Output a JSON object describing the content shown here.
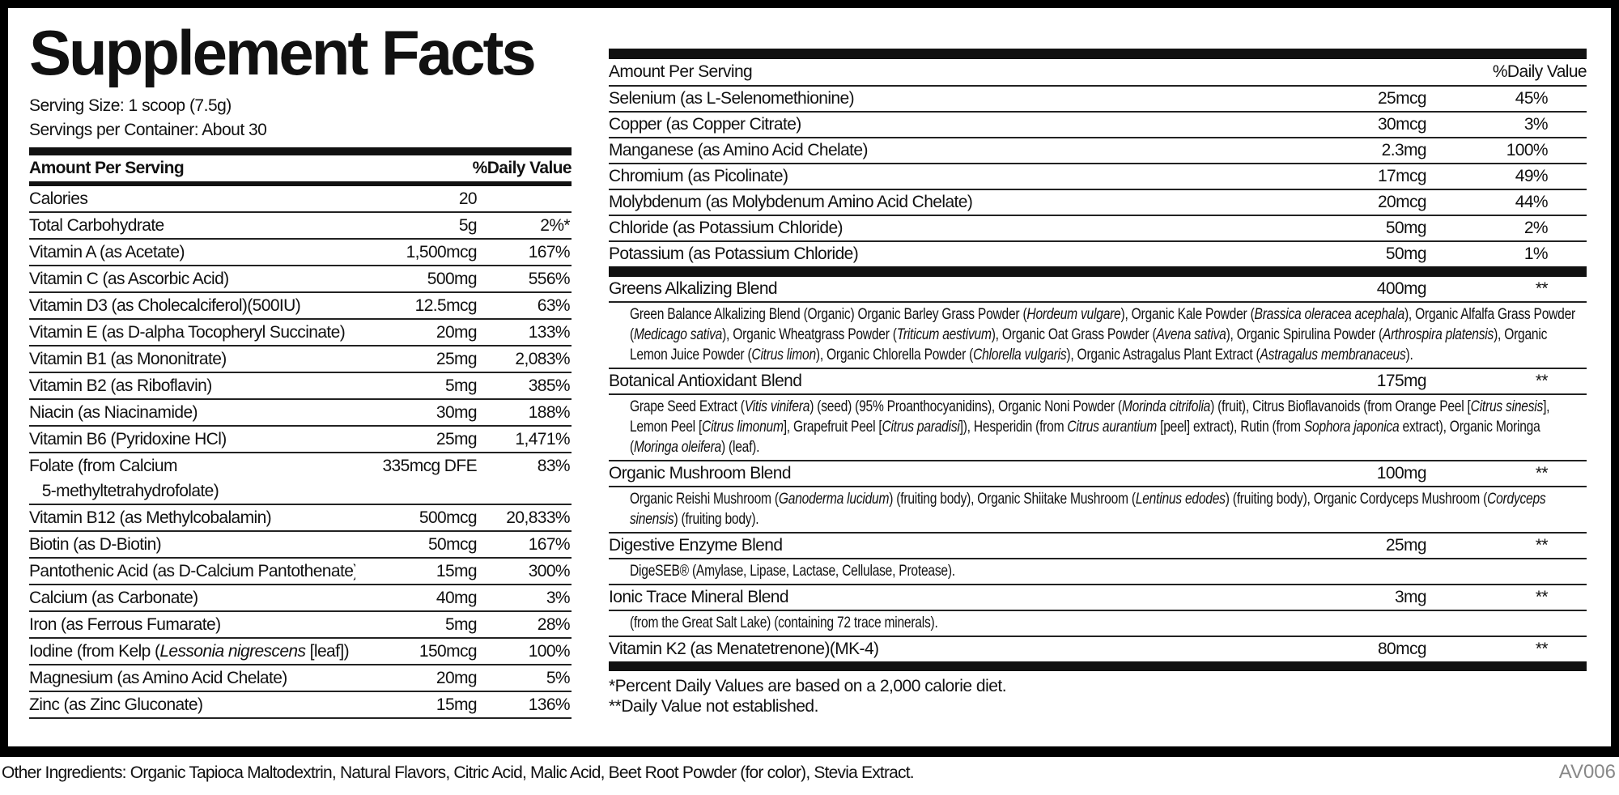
{
  "left": {
    "title": "Supplement Facts",
    "serving_size": "Serving Size: 1 scoop (7.5g)",
    "servings_per_container": "Servings per Container: About 30",
    "header": {
      "name": "Amount Per Serving",
      "dv": "%Daily Value"
    },
    "rows": [
      {
        "name": "Calories",
        "amount": "20",
        "dv": ""
      },
      {
        "name": "Total Carbohydrate",
        "amount": "5g",
        "dv": "2%*"
      },
      {
        "name": "Vitamin A (as Acetate)",
        "amount": "1,500mcg",
        "dv": "167%"
      },
      {
        "name": "Vitamin C (as Ascorbic Acid)",
        "amount": "500mg",
        "dv": "556%"
      },
      {
        "name": "Vitamin D3 (as Cholecalciferol)(500IU)",
        "amount": "12.5mcg",
        "dv": "63%"
      },
      {
        "name": "Vitamin E (as D-alpha Tocopheryl Succinate)",
        "amount": "20mg",
        "dv": "133%"
      },
      {
        "name": "Vitamin B1 (as Mononitrate)",
        "amount": "25mg",
        "dv": "2,083%"
      },
      {
        "name": "Vitamin B2 (as Riboflavin)",
        "amount": "5mg",
        "dv": "385%"
      },
      {
        "name": "Niacin (as Niacinamide)",
        "amount": "30mg",
        "dv": "188%"
      },
      {
        "name": "Vitamin B6 (Pyridoxine HCl)",
        "amount": "25mg",
        "dv": "1,471%"
      },
      {
        "name": "Folate (from Calcium\n   5-methyltetrahydrofolate)",
        "amount": "335mcg DFE",
        "dv": "83%"
      },
      {
        "name": "Vitamin B12 (as Methylcobalamin)",
        "amount": "500mcg",
        "dv": "20,833%"
      },
      {
        "name": "Biotin (as D-Biotin)",
        "amount": "50mcg",
        "dv": "167%"
      },
      {
        "name": "Pantothenic Acid (as D-Calcium Pantothenate)",
        "amount": "15mg",
        "dv": "300%"
      },
      {
        "name": "Calcium (as Carbonate)",
        "amount": "40mg",
        "dv": "3%"
      },
      {
        "name": "Iron (as Ferrous Fumarate)",
        "amount": "5mg",
        "dv": "28%"
      },
      {
        "name": [
          {
            "t": "Iodine (from Kelp ("
          },
          {
            "t": "Lessonia nigrescens",
            "i": true
          },
          {
            "t": " [leaf])"
          }
        ],
        "amount": "150mcg",
        "dv": "100%"
      },
      {
        "name": "Magnesium (as Amino Acid Chelate)",
        "amount": "20mg",
        "dv": "5%"
      },
      {
        "name": "Zinc (as Zinc Gluconate)",
        "amount": "15mg",
        "dv": "136%"
      }
    ]
  },
  "right": {
    "header": {
      "name": "Amount Per Serving",
      "dv": "%Daily Value"
    },
    "minerals": [
      {
        "name": "Selenium (as L-Selenomethionine)",
        "amount": "25mcg",
        "dv": "45%"
      },
      {
        "name": "Copper (as Copper Citrate)",
        "amount": "30mcg",
        "dv": "3%"
      },
      {
        "name": "Manganese (as Amino Acid Chelate)",
        "amount": "2.3mg",
        "dv": "100%"
      },
      {
        "name": "Chromium (as Picolinate)",
        "amount": "17mcg",
        "dv": "49%"
      },
      {
        "name": "Molybdenum (as Molybdenum Amino Acid Chelate)",
        "amount": "20mcg",
        "dv": "44%"
      },
      {
        "name": "Chloride (as Potassium Chloride)",
        "amount": "50mg",
        "dv": "2%"
      },
      {
        "name": "Potassium (as Potassium Chloride)",
        "amount": "50mg",
        "dv": "1%"
      }
    ],
    "blends": [
      {
        "name": "Greens Alkalizing Blend",
        "amount": "400mg",
        "dv": "**",
        "desc": [
          {
            "t": "Green Balance Alkalizing Blend (Organic) Organic Barley Grass Powder ("
          },
          {
            "t": "Hordeum vulgare",
            "i": true
          },
          {
            "t": "), Organic Kale Powder ("
          },
          {
            "t": "Brassica oleracea acephala",
            "i": true
          },
          {
            "t": "), Organic Alfalfa Grass Powder ("
          },
          {
            "t": "Medicago sativa",
            "i": true
          },
          {
            "t": "), Organic Wheatgrass Powder ("
          },
          {
            "t": "Triticum aestivum",
            "i": true
          },
          {
            "t": "), Organic Oat Grass Powder ("
          },
          {
            "t": "Avena sativa",
            "i": true
          },
          {
            "t": "), Organic Spirulina Powder ("
          },
          {
            "t": "Arthrospira platensis",
            "i": true
          },
          {
            "t": "), Organic Lemon Juice Powder ("
          },
          {
            "t": "Citrus limon",
            "i": true
          },
          {
            "t": "), Organic Chlorella Powder ("
          },
          {
            "t": "Chlorella vulgaris",
            "i": true
          },
          {
            "t": "), Organic Astragalus Plant Extract ("
          },
          {
            "t": "Astragalus membranaceus",
            "i": true
          },
          {
            "t": ")."
          }
        ]
      },
      {
        "name": "Botanical Antioxidant Blend",
        "amount": "175mg",
        "dv": "**",
        "desc": [
          {
            "t": "Grape Seed Extract ("
          },
          {
            "t": "Vitis vinifera",
            "i": true
          },
          {
            "t": ") (seed) (95% Proanthocyanidins), Organic Noni Powder ("
          },
          {
            "t": "Morinda citrifolia",
            "i": true
          },
          {
            "t": ") (fruit), Citrus Bioflavanoids (from Orange Peel ["
          },
          {
            "t": "Citrus sinesis",
            "i": true
          },
          {
            "t": "], Lemon Peel ["
          },
          {
            "t": "Citrus limonum",
            "i": true
          },
          {
            "t": "], Grapefruit Peel ["
          },
          {
            "t": "Citrus paradisi",
            "i": true
          },
          {
            "t": "]), Hesperidin (from "
          },
          {
            "t": "Citrus aurantium",
            "i": true
          },
          {
            "t": " [peel] extract), Rutin (from "
          },
          {
            "t": "Sophora japonica",
            "i": true
          },
          {
            "t": " extract), Organic Moringa ("
          },
          {
            "t": "Moringa oleifera",
            "i": true
          },
          {
            "t": ") (leaf)."
          }
        ]
      },
      {
        "name": "Organic Mushroom Blend",
        "amount": "100mg",
        "dv": "**",
        "desc": [
          {
            "t": "Organic Reishi Mushroom ("
          },
          {
            "t": "Ganoderma lucidum",
            "i": true
          },
          {
            "t": ") (fruiting body), Organic Shiitake Mushroom ("
          },
          {
            "t": "Lentinus edodes",
            "i": true
          },
          {
            "t": ") (fruiting body), Organic Cordyceps Mushroom ("
          },
          {
            "t": "Cordyceps sinensis",
            "i": true
          },
          {
            "t": ") (fruiting body)."
          }
        ]
      },
      {
        "name": "Digestive Enzyme Blend",
        "amount": "25mg",
        "dv": "**",
        "desc": [
          {
            "t": "DigeSEB® (Amylase, Lipase, Lactase, Cellulase, Protease)."
          }
        ]
      },
      {
        "name": "Ionic Trace Mineral Blend",
        "amount": "3mg",
        "dv": "**",
        "desc": [
          {
            "t": "(from the Great Salt Lake) (containing 72 trace minerals)."
          }
        ]
      },
      {
        "name": "Vitamin K2 (as Menatetrenone)(MK-4)",
        "amount": "80mcg",
        "dv": "**"
      }
    ],
    "footnote1": "*Percent Daily Values are based on a 2,000 calorie diet.",
    "footnote2": "**Daily Value not established."
  },
  "other_ingredients": "Other Ingredients: Organic Tapioca Maltodextrin, Natural Flavors, Citric Acid, Malic Acid, Beet Root Powder (for color), Stevia Extract.",
  "code": "AV006"
}
